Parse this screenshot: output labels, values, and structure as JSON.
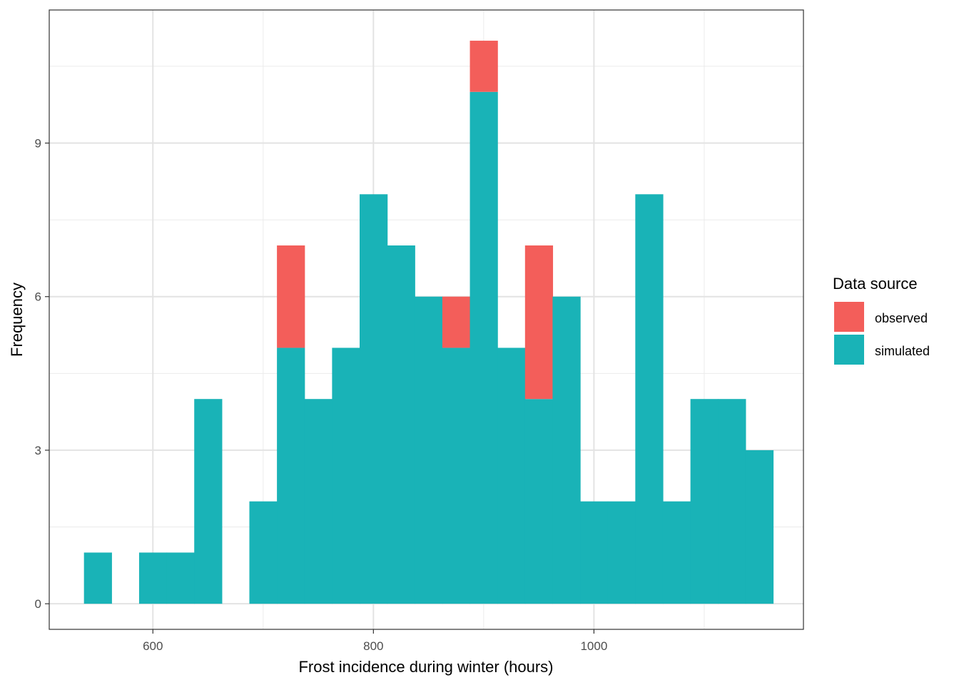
{
  "chart_data": {
    "type": "bar",
    "subtype": "stacked-histogram",
    "title": "",
    "xlabel": "Frost incidence during winter (hours)",
    "ylabel": "Frequency",
    "xlim": [
      506,
      1190
    ],
    "ylim": [
      -0.5,
      11.6
    ],
    "x_ticks": [
      600,
      800,
      1000
    ],
    "x_tick_labels": [
      "600",
      "800",
      "1000"
    ],
    "y_ticks": [
      0,
      3,
      6,
      9
    ],
    "y_tick_labels": [
      "0",
      "3",
      "6",
      "9"
    ],
    "grid": true,
    "legend": {
      "title": "Data source",
      "position": "right"
    },
    "bin_width": 25,
    "bins": [
      {
        "start": 537.5,
        "end": 562.5
      },
      {
        "start": 562.5,
        "end": 587.5
      },
      {
        "start": 587.5,
        "end": 612.5
      },
      {
        "start": 612.5,
        "end": 637.5
      },
      {
        "start": 637.5,
        "end": 662.5
      },
      {
        "start": 662.5,
        "end": 687.5
      },
      {
        "start": 687.5,
        "end": 712.5
      },
      {
        "start": 712.5,
        "end": 737.5
      },
      {
        "start": 737.5,
        "end": 762.5
      },
      {
        "start": 762.5,
        "end": 787.5
      },
      {
        "start": 787.5,
        "end": 812.5
      },
      {
        "start": 812.5,
        "end": 837.5
      },
      {
        "start": 837.5,
        "end": 862.5
      },
      {
        "start": 862.5,
        "end": 887.5
      },
      {
        "start": 887.5,
        "end": 912.5
      },
      {
        "start": 912.5,
        "end": 937.5
      },
      {
        "start": 937.5,
        "end": 962.5
      },
      {
        "start": 962.5,
        "end": 987.5
      },
      {
        "start": 987.5,
        "end": 1012.5
      },
      {
        "start": 1012.5,
        "end": 1037.5
      },
      {
        "start": 1037.5,
        "end": 1062.5
      },
      {
        "start": 1062.5,
        "end": 1087.5
      },
      {
        "start": 1087.5,
        "end": 1112.5
      },
      {
        "start": 1112.5,
        "end": 1137.5
      },
      {
        "start": 1137.5,
        "end": 1162.5
      }
    ],
    "series": [
      {
        "name": "simulated",
        "color": "#19B3B7",
        "values": [
          1,
          0,
          1,
          1,
          4,
          0,
          2,
          5,
          4,
          5,
          8,
          7,
          6,
          5,
          10,
          5,
          4,
          6,
          2,
          2,
          8,
          2,
          4,
          4,
          3
        ]
      },
      {
        "name": "observed",
        "color": "#F35E5A",
        "values": [
          0,
          0,
          0,
          0,
          0,
          0,
          0,
          2,
          0,
          0,
          0,
          0,
          0,
          1,
          1,
          0,
          3,
          0,
          0,
          0,
          0,
          0,
          0,
          0,
          0
        ]
      }
    ]
  }
}
